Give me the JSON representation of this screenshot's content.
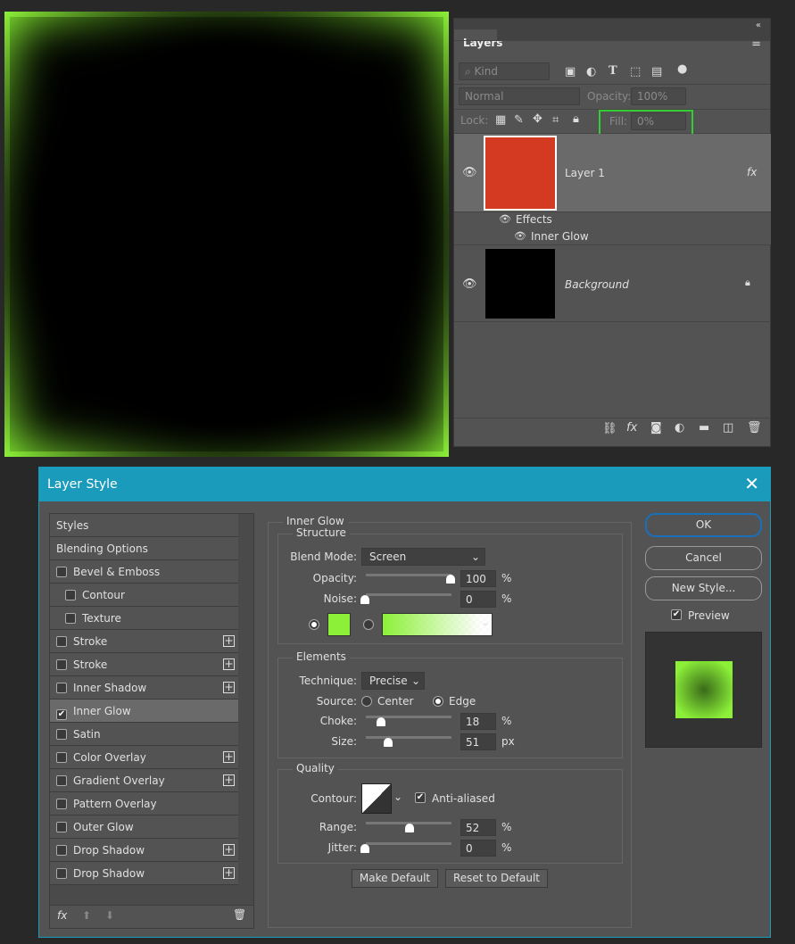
{
  "colors": {
    "glow": "#8cf038",
    "layer_fill": "#d33a21",
    "accent": "#1a9bbb",
    "highlight": "#33cc33"
  },
  "layers_panel": {
    "tab": "Layers",
    "filter": "Kind",
    "blend": "Normal",
    "opacity_label": "Opacity:",
    "opacity": "100%",
    "lock_label": "Lock:",
    "fill_label": "Fill:",
    "fill": "0%",
    "layers": [
      {
        "name": "Layer 1",
        "fx": "fx",
        "effects_label": "Effects",
        "effect": "Inner Glow"
      },
      {
        "name": "Background"
      }
    ]
  },
  "dialog": {
    "title": "Layer Style",
    "list": [
      {
        "label": "Styles"
      },
      {
        "label": "Blending Options"
      },
      {
        "label": "Bevel & Emboss",
        "check": false
      },
      {
        "label": "Contour",
        "check": false,
        "indent": true
      },
      {
        "label": "Texture",
        "check": false,
        "indent": true
      },
      {
        "label": "Stroke",
        "check": false,
        "plus": true
      },
      {
        "label": "Stroke",
        "check": false,
        "plus": true
      },
      {
        "label": "Inner Shadow",
        "check": false,
        "plus": true
      },
      {
        "label": "Inner Glow",
        "check": true,
        "selected": true
      },
      {
        "label": "Satin",
        "check": false
      },
      {
        "label": "Color Overlay",
        "check": false,
        "plus": true
      },
      {
        "label": "Gradient Overlay",
        "check": false,
        "plus": true
      },
      {
        "label": "Pattern Overlay",
        "check": false
      },
      {
        "label": "Outer Glow",
        "check": false
      },
      {
        "label": "Drop Shadow",
        "check": false,
        "plus": true
      },
      {
        "label": "Drop Shadow",
        "check": false,
        "plus": true
      }
    ],
    "section": "Inner Glow",
    "structure": {
      "title": "Structure",
      "blend_label": "Blend Mode:",
      "blend": "Screen",
      "opacity_label": "Opacity:",
      "opacity": "100",
      "noise_label": "Noise:",
      "noise": "0",
      "pct": "%"
    },
    "elements": {
      "title": "Elements",
      "technique_label": "Technique:",
      "technique": "Precise",
      "source_label": "Source:",
      "center": "Center",
      "edge": "Edge",
      "source": "Edge",
      "choke_label": "Choke:",
      "choke": "18",
      "size_label": "Size:",
      "size": "51",
      "px": "px"
    },
    "quality": {
      "title": "Quality",
      "contour_label": "Contour:",
      "anti_aliased": "Anti-aliased",
      "range_label": "Range:",
      "range": "52",
      "jitter_label": "Jitter:",
      "jitter": "0"
    },
    "make_default": "Make Default",
    "reset_default": "Reset to Default",
    "ok": "OK",
    "cancel": "Cancel",
    "new_style": "New Style...",
    "preview": "Preview",
    "fx": "fx"
  }
}
